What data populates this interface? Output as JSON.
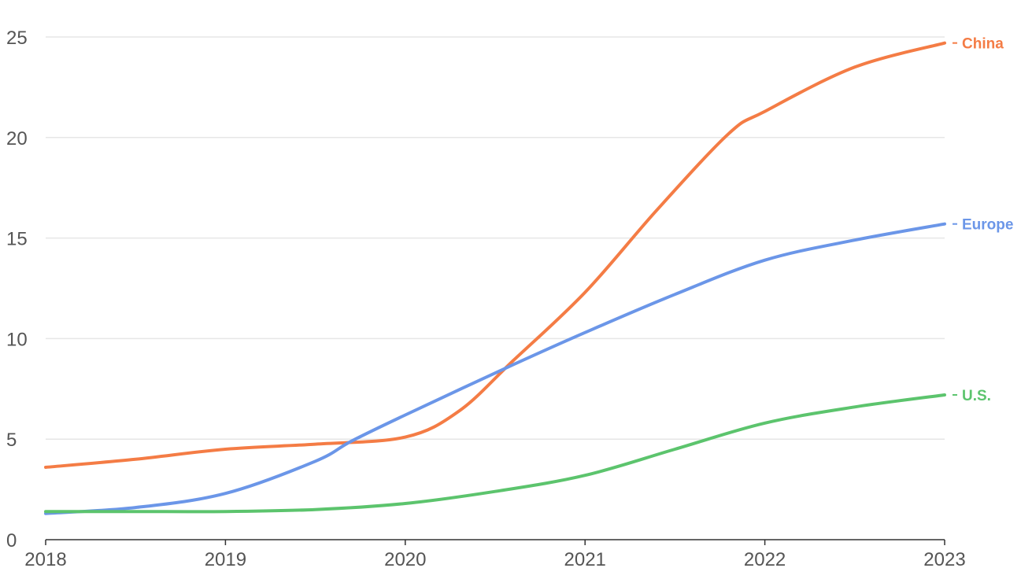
{
  "chart_data": {
    "type": "line",
    "x": [
      2018,
      2019,
      2020,
      2021,
      2022,
      2023
    ],
    "x_ticks": [
      "2018",
      "2019",
      "2020",
      "2021",
      "2022",
      "2023"
    ],
    "y_ticks": [
      "0",
      "5",
      "10",
      "15",
      "20",
      "25"
    ],
    "ylim": [
      0,
      25
    ],
    "grid": true,
    "series": [
      {
        "name": "China",
        "color": "#f47c45",
        "points": [
          [
            2018,
            3.6
          ],
          [
            2018.5,
            4.0
          ],
          [
            2019,
            4.5
          ],
          [
            2019.5,
            4.75
          ],
          [
            2020,
            5.1
          ],
          [
            2020.3,
            6.4
          ],
          [
            2020.6,
            8.9
          ],
          [
            2021,
            12.3
          ],
          [
            2021.4,
            16.4
          ],
          [
            2021.8,
            20.2
          ],
          [
            2022,
            21.3
          ],
          [
            2022.5,
            23.5
          ],
          [
            2023,
            24.7
          ]
        ]
      },
      {
        "name": "Europe",
        "color": "#6b96e8",
        "points": [
          [
            2018,
            1.3
          ],
          [
            2018.5,
            1.6
          ],
          [
            2019,
            2.3
          ],
          [
            2019.5,
            3.9
          ],
          [
            2019.7,
            4.9
          ],
          [
            2020,
            6.2
          ],
          [
            2020.6,
            8.7
          ],
          [
            2021,
            10.3
          ],
          [
            2021.5,
            12.2
          ],
          [
            2022,
            13.9
          ],
          [
            2022.5,
            14.9
          ],
          [
            2023,
            15.7
          ]
        ]
      },
      {
        "name": "U.S.",
        "color": "#5cc46d",
        "points": [
          [
            2018,
            1.4
          ],
          [
            2018.5,
            1.4
          ],
          [
            2019,
            1.4
          ],
          [
            2019.5,
            1.5
          ],
          [
            2020,
            1.8
          ],
          [
            2020.5,
            2.4
          ],
          [
            2021,
            3.2
          ],
          [
            2021.5,
            4.5
          ],
          [
            2022,
            5.8
          ],
          [
            2022.5,
            6.6
          ],
          [
            2023,
            7.2
          ]
        ]
      }
    ]
  }
}
